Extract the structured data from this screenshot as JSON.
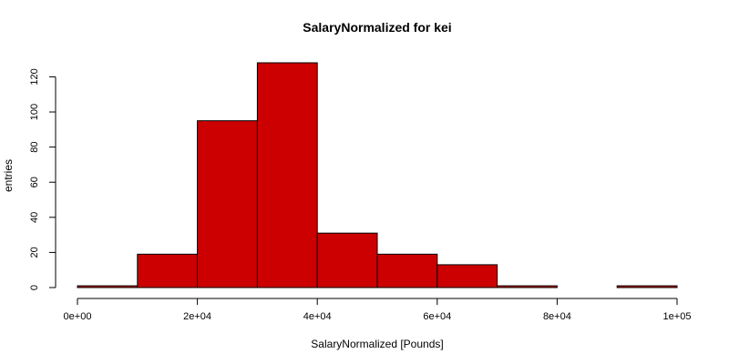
{
  "chart_data": {
    "type": "bar",
    "subtype": "histogram",
    "title": "SalaryNormalized for kei",
    "xlabel": "SalaryNormalized [Pounds]",
    "ylabel": "entries",
    "bins": [
      {
        "start": 0,
        "end": 10000,
        "count": 1
      },
      {
        "start": 10000,
        "end": 20000,
        "count": 19
      },
      {
        "start": 20000,
        "end": 30000,
        "count": 95
      },
      {
        "start": 30000,
        "end": 40000,
        "count": 128
      },
      {
        "start": 40000,
        "end": 50000,
        "count": 31
      },
      {
        "start": 50000,
        "end": 60000,
        "count": 19
      },
      {
        "start": 60000,
        "end": 70000,
        "count": 13
      },
      {
        "start": 70000,
        "end": 80000,
        "count": 1
      },
      {
        "start": 80000,
        "end": 90000,
        "count": 0
      },
      {
        "start": 90000,
        "end": 100000,
        "count": 1
      }
    ],
    "xlim": [
      0,
      100000
    ],
    "ylim": [
      0,
      128
    ],
    "x_ticks": [
      0,
      20000,
      40000,
      60000,
      80000,
      100000
    ],
    "x_tick_labels": [
      "0e+00",
      "2e+04",
      "4e+04",
      "6e+04",
      "8e+04",
      "1e+05"
    ],
    "y_ticks": [
      0,
      20,
      40,
      60,
      80,
      100,
      120
    ],
    "y_tick_labels": [
      "0",
      "20",
      "40",
      "60",
      "80",
      "100",
      "120"
    ],
    "bar_color": "#cc0000",
    "edge_color": "#000000",
    "grid": false,
    "legend": "none"
  }
}
